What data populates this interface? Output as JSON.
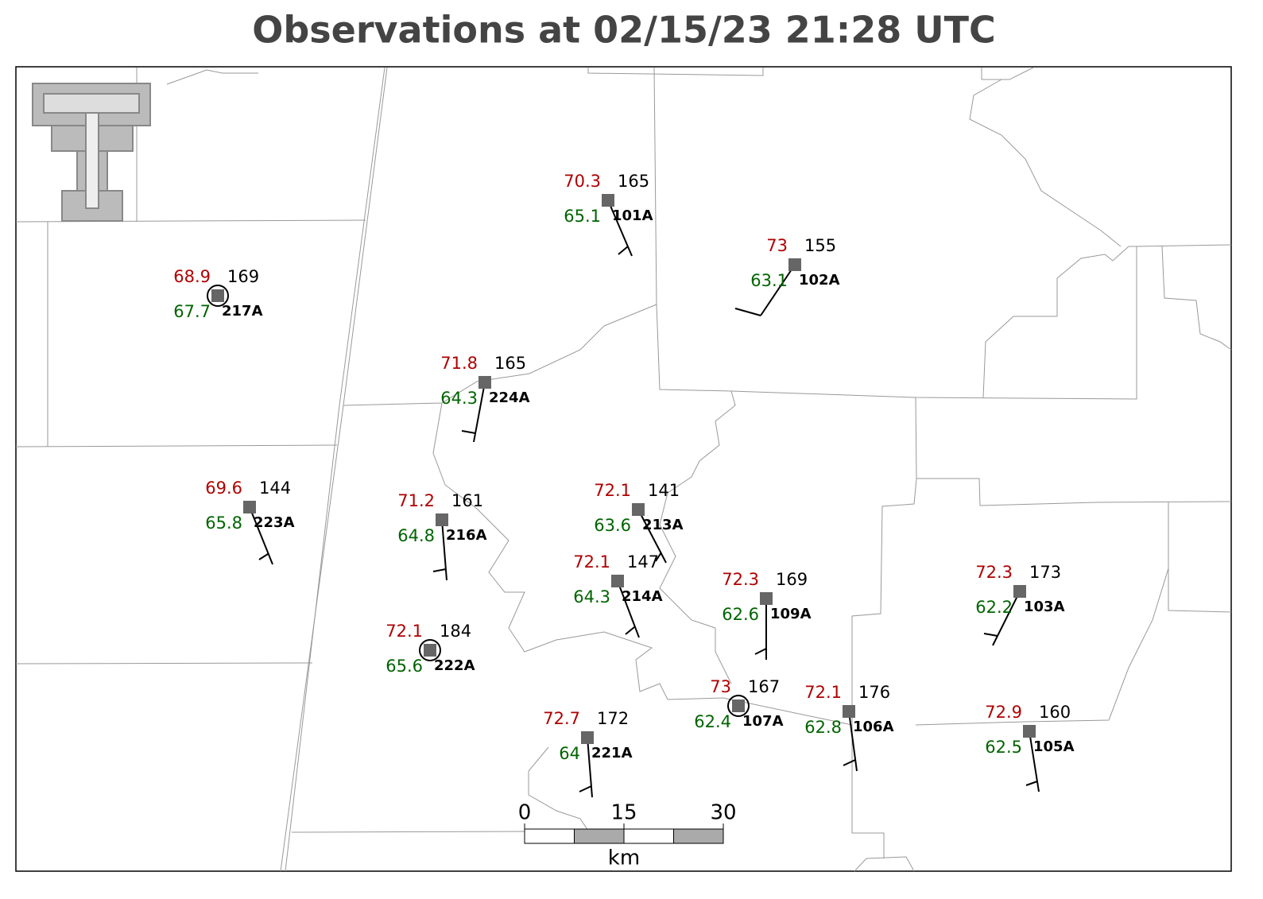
{
  "title": "Observations at 02/15/23 21:28 UTC",
  "stations": [
    {
      "id": "101A",
      "temperature": 70.3,
      "dewpoint": 65.1,
      "pressure": 165
    },
    {
      "id": "102A",
      "temperature": 73.0,
      "dewpoint": 63.1,
      "pressure": 155
    },
    {
      "id": "217A",
      "temperature": 68.9,
      "dewpoint": 67.7,
      "pressure": 169
    },
    {
      "id": "224A",
      "temperature": 71.8,
      "dewpoint": 64.3,
      "pressure": 165
    },
    {
      "id": "223A",
      "temperature": 69.6,
      "dewpoint": 65.8,
      "pressure": 144
    },
    {
      "id": "216A",
      "temperature": 71.2,
      "dewpoint": 64.8,
      "pressure": 161
    },
    {
      "id": "213A",
      "temperature": 72.1,
      "dewpoint": 63.6,
      "pressure": 141
    },
    {
      "id": "214A",
      "temperature": 72.1,
      "dewpoint": 64.3,
      "pressure": 147
    },
    {
      "id": "109A",
      "temperature": 72.3,
      "dewpoint": 62.6,
      "pressure": 169
    },
    {
      "id": "222A",
      "temperature": 72.1,
      "dewpoint": 65.6,
      "pressure": 184
    },
    {
      "id": "107A",
      "temperature": 73.0,
      "dewpoint": 62.4,
      "pressure": 167
    },
    {
      "id": "106A",
      "temperature": 72.1,
      "dewpoint": 62.8,
      "pressure": 176
    },
    {
      "id": "103A",
      "temperature": 72.3,
      "dewpoint": 62.2,
      "pressure": 173
    },
    {
      "id": "221A",
      "temperature": 72.7,
      "dewpoint": 64.0,
      "pressure": 172
    },
    {
      "id": "105A",
      "temperature": 72.9,
      "dewpoint": 62.5,
      "pressure": 160
    }
  ],
  "scale_bar": {
    "ticks": [
      0,
      15,
      30
    ],
    "unit": "km"
  }
}
